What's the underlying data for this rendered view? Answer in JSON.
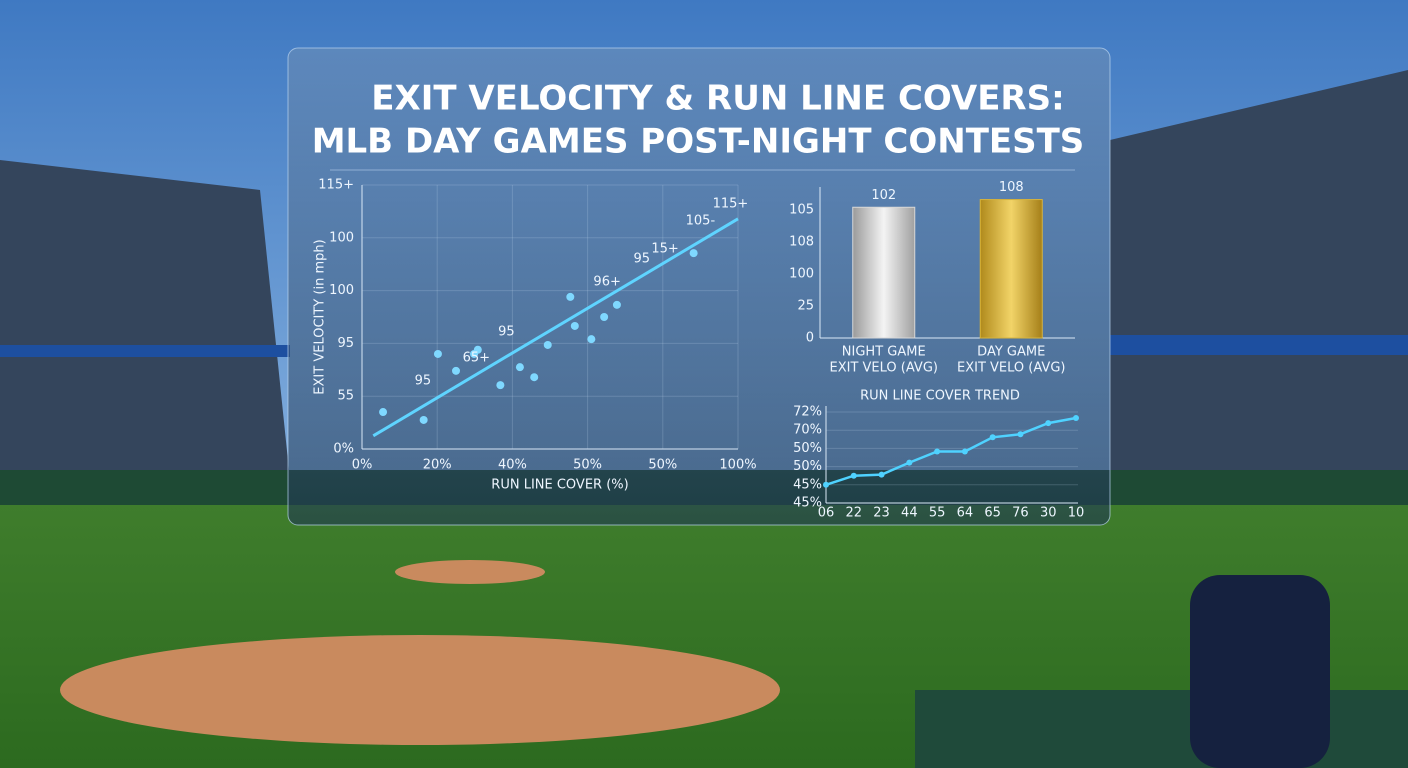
{
  "title": [
    "EXIT VELOCITY & RUN LINE COVERS:",
    "MLB DAY GAMES POST-NIGHT CONTESTS"
  ],
  "chart_data": [
    {
      "type": "scatter",
      "xlabel": "RUN LINE COVER (%)",
      "ylabel": "EXIT VELOCITY (in mph)",
      "x": [
        0.28,
        0.82,
        1.01,
        1.25,
        1.49,
        1.54,
        1.84,
        2.1,
        2.29,
        2.47,
        2.77,
        2.83,
        3.05,
        3.22,
        3.39,
        4.41
      ],
      "values": [
        0.7,
        0.55,
        1.8,
        1.48,
        1.8,
        1.88,
        1.21,
        1.55,
        1.36,
        1.97,
        2.88,
        2.33,
        2.08,
        2.5,
        2.73,
        3.71
      ],
      "color": "#7fd8ff",
      "trendline": {
        "x": [
          0.15,
          5
        ],
        "y": [
          0.25,
          4.36
        ],
        "color": "#5fd4ff"
      },
      "annotations": [
        {
          "text": "95",
          "x": 0.81,
          "y": 1.29
        },
        {
          "text": "65+",
          "x": 1.52,
          "y": 1.72
        },
        {
          "text": "95",
          "x": 1.92,
          "y": 2.22
        },
        {
          "text": "96+",
          "x": 3.26,
          "y": 3.16
        },
        {
          "text": "95",
          "x": 3.72,
          "y": 3.6
        },
        {
          "text": "15+",
          "x": 4.03,
          "y": 3.79
        },
        {
          "text": "105-",
          "x": 4.5,
          "y": 4.32
        },
        {
          "text": "115+",
          "x": 4.9,
          "y": 4.64
        }
      ],
      "xlim": [
        0,
        5
      ],
      "ylim": [
        0,
        5
      ],
      "xticks": [
        {
          "value": 0,
          "label": "0%"
        },
        {
          "value": 1,
          "label": "20%"
        },
        {
          "value": 2,
          "label": "40%"
        },
        {
          "value": 3,
          "label": "50%"
        },
        {
          "value": 4,
          "label": "50%"
        },
        {
          "value": 5,
          "label": "100%"
        }
      ],
      "yticks": [
        {
          "value": 0,
          "label": "0%"
        },
        {
          "value": 1,
          "label": "55"
        },
        {
          "value": 2,
          "label": "95"
        },
        {
          "value": 3,
          "label": "100"
        },
        {
          "value": 4,
          "label": "100"
        },
        {
          "value": 5,
          "label": "115+"
        }
      ],
      "grid": true
    },
    {
      "type": "bar",
      "categories": [
        [
          "NIGHT GAME",
          "EXIT VELO (AVG)"
        ],
        [
          "DAY GAME",
          "EXIT VELO (AVG)"
        ]
      ],
      "values": [
        102,
        108
      ],
      "colors": [
        "#d8d8d8",
        "#d9b43a"
      ],
      "ylim": [
        0,
        110
      ],
      "yticks": [
        0,
        25,
        {
          "value": 50,
          "label": "100"
        },
        {
          "value": 75,
          "label": "108"
        },
        {
          "value": 100,
          "label": "105"
        }
      ]
    },
    {
      "type": "line",
      "title": "RUN LINE COVER TREND",
      "categories": [
        "06",
        "22",
        "23",
        "44",
        "55",
        "64",
        "65",
        "76",
        "30",
        "10"
      ],
      "values": [
        1.0,
        1.5,
        1.56,
        2.22,
        2.83,
        2.83,
        3.61,
        3.78,
        4.39,
        4.67
      ],
      "color": "#4fd2ff",
      "ylim": [
        0,
        5
      ],
      "yticks": [
        {
          "value": 0,
          "label": "45%"
        },
        {
          "value": 1,
          "label": "45%"
        },
        {
          "value": 2,
          "label": "50%"
        },
        {
          "value": 3,
          "label": "50%"
        },
        {
          "value": 4,
          "label": "70%"
        },
        {
          "value": 5,
          "label": "72%"
        }
      ],
      "grid": true
    }
  ]
}
